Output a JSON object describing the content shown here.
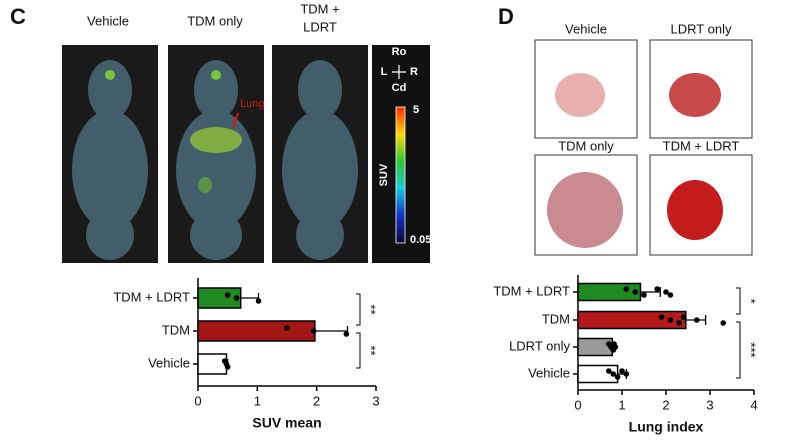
{
  "panel_c": {
    "label": "C",
    "image_labels": [
      "Vehicle",
      "TDM only",
      "TDM +",
      "LDRT"
    ],
    "arrow_label": "Lung",
    "orientation": {
      "up": "Ro",
      "left": "L",
      "right": "R",
      "down": "Cd"
    },
    "colorbar": {
      "label": "SUV",
      "max": 5,
      "min": 0.05
    }
  },
  "panel_d": {
    "label": "D",
    "image_labels": [
      "Vehicle",
      "LDRT only",
      "TDM only",
      "TDM + LDRT"
    ]
  },
  "chart_data": [
    {
      "type": "hbar",
      "categories": [
        "TDM + LDRT",
        "TDM",
        "Vehicle"
      ],
      "values": [
        0.72,
        1.97,
        0.48
      ],
      "errors": [
        0.3,
        0.55,
        0.02
      ],
      "colors": [
        "#1f8a22",
        "#a41616",
        "#ffffff"
      ],
      "points": [
        [
          0.5,
          0.65,
          1.02
        ],
        [
          1.5,
          1.95,
          2.5
        ],
        [
          0.45,
          0.48,
          0.5
        ]
      ],
      "significance": [
        "**",
        "**"
      ],
      "xlabel": "SUV mean",
      "xlim": [
        0,
        3
      ],
      "xticks": [
        0,
        1,
        2,
        3
      ]
    },
    {
      "type": "hbar",
      "categories": [
        "TDM + LDRT",
        "TDM",
        "LDRT only",
        "Vehicle"
      ],
      "values": [
        1.42,
        2.45,
        0.78,
        0.9
      ],
      "errors": [
        0.45,
        0.45,
        0.06,
        0.2
      ],
      "colors": [
        "#1f8a22",
        "#b51a1a",
        "#9a9a9a",
        "#ffffff"
      ],
      "points": [
        [
          1.1,
          1.3,
          1.5,
          1.8,
          2.0,
          2.1
        ],
        [
          1.9,
          2.1,
          2.3,
          2.4,
          2.7,
          3.3
        ],
        [
          0.7,
          0.75,
          0.8,
          0.82,
          0.85
        ],
        [
          0.7,
          0.8,
          0.9,
          1.0,
          1.1
        ]
      ],
      "significance": [
        "*",
        "***"
      ],
      "xlabel": "Lung index",
      "xlim": [
        0,
        4
      ],
      "xticks": [
        0,
        1,
        2,
        3,
        4
      ]
    }
  ]
}
